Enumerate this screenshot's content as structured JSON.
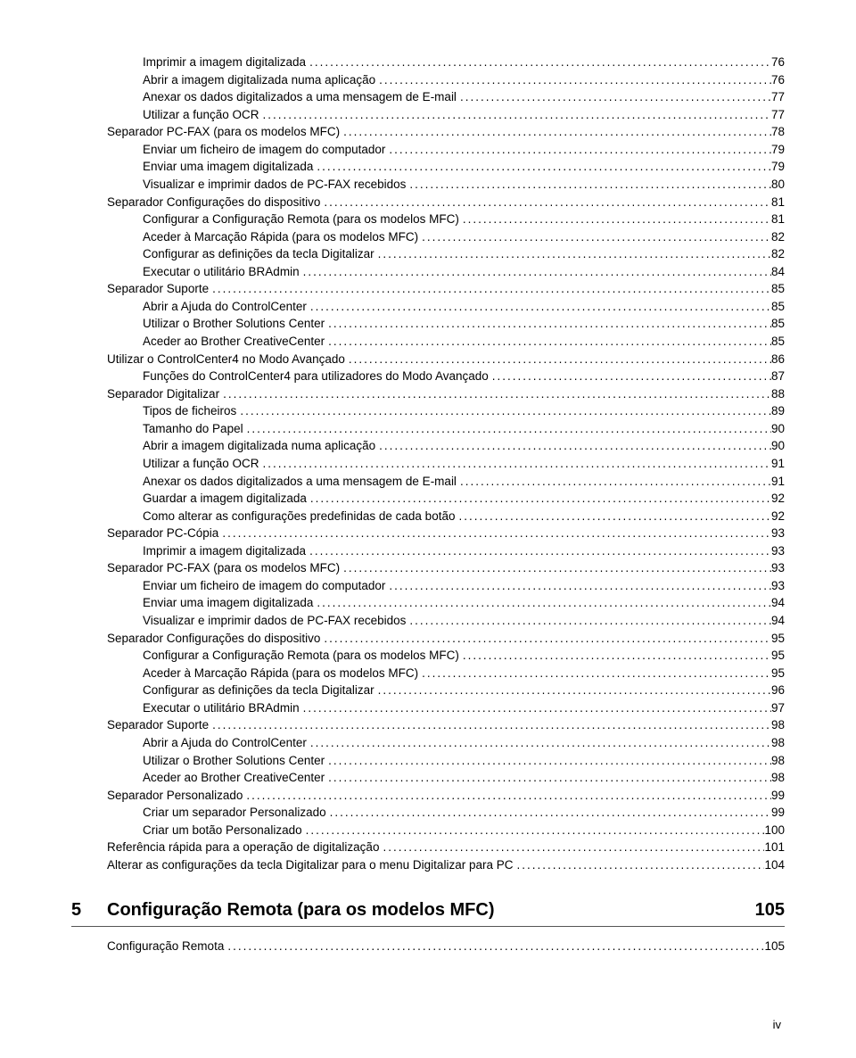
{
  "toc": [
    {
      "indent": 1,
      "title": "Imprimir a imagem digitalizada",
      "page": "76"
    },
    {
      "indent": 1,
      "title": "Abrir a imagem digitalizada numa aplicação",
      "page": "76"
    },
    {
      "indent": 1,
      "title": "Anexar os dados digitalizados a uma mensagem de E-mail",
      "page": "77"
    },
    {
      "indent": 1,
      "title": "Utilizar a função OCR",
      "page": "77"
    },
    {
      "indent": 0,
      "title": "Separador PC-FAX (para os modelos MFC)",
      "page": "78"
    },
    {
      "indent": 1,
      "title": "Enviar um ficheiro de imagem do computador",
      "page": "79"
    },
    {
      "indent": 1,
      "title": "Enviar uma imagem digitalizada",
      "page": "79"
    },
    {
      "indent": 1,
      "title": "Visualizar e imprimir dados de PC-FAX recebidos",
      "page": "80"
    },
    {
      "indent": 0,
      "title": "Separador Configurações do dispositivo",
      "page": "81"
    },
    {
      "indent": 1,
      "title": "Configurar a Configuração Remota (para os modelos MFC)",
      "page": "81"
    },
    {
      "indent": 1,
      "title": "Aceder à Marcação Rápida (para os modelos MFC)",
      "page": "82"
    },
    {
      "indent": 1,
      "title": "Configurar as definições da tecla Digitalizar",
      "page": "82"
    },
    {
      "indent": 1,
      "title": "Executar o utilitário BRAdmin",
      "page": "84"
    },
    {
      "indent": 0,
      "title": "Separador Suporte",
      "page": "85"
    },
    {
      "indent": 1,
      "title": "Abrir a Ajuda do ControlCenter",
      "page": "85"
    },
    {
      "indent": 1,
      "title": "Utilizar o Brother Solutions Center",
      "page": "85"
    },
    {
      "indent": 1,
      "title": "Aceder ao Brother CreativeCenter",
      "page": "85"
    },
    {
      "indent": 0,
      "title": "Utilizar o ControlCenter4 no Modo Avançado",
      "page": "86"
    },
    {
      "indent": 1,
      "title": "Funções do ControlCenter4 para utilizadores do Modo Avançado",
      "page": "87"
    },
    {
      "indent": 0,
      "title": "Separador Digitalizar",
      "page": "88"
    },
    {
      "indent": 1,
      "title": "Tipos de ficheiros",
      "page": "89"
    },
    {
      "indent": 1,
      "title": "Tamanho do Papel",
      "page": "90"
    },
    {
      "indent": 1,
      "title": "Abrir a imagem digitalizada numa aplicação",
      "page": "90"
    },
    {
      "indent": 1,
      "title": "Utilizar a função OCR",
      "page": "91"
    },
    {
      "indent": 1,
      "title": "Anexar os dados digitalizados a uma mensagem de E-mail",
      "page": "91"
    },
    {
      "indent": 1,
      "title": "Guardar a imagem digitalizada",
      "page": "92"
    },
    {
      "indent": 1,
      "title": "Como alterar as configurações predefinidas de cada botão",
      "page": "92"
    },
    {
      "indent": 0,
      "title": "Separador PC-Cópia",
      "page": "93"
    },
    {
      "indent": 1,
      "title": "Imprimir a imagem digitalizada",
      "page": "93"
    },
    {
      "indent": 0,
      "title": "Separador PC-FAX (para os modelos MFC)",
      "page": "93"
    },
    {
      "indent": 1,
      "title": "Enviar um ficheiro de imagem do computador",
      "page": "93"
    },
    {
      "indent": 1,
      "title": "Enviar uma imagem digitalizada",
      "page": "94"
    },
    {
      "indent": 1,
      "title": "Visualizar e imprimir dados de PC-FAX recebidos",
      "page": "94"
    },
    {
      "indent": 0,
      "title": "Separador Configurações do dispositivo",
      "page": "95"
    },
    {
      "indent": 1,
      "title": "Configurar a Configuração Remota (para os modelos MFC)",
      "page": "95"
    },
    {
      "indent": 1,
      "title": "Aceder à Marcação Rápida (para os modelos MFC)",
      "page": "95"
    },
    {
      "indent": 1,
      "title": "Configurar as definições da tecla Digitalizar",
      "page": "96"
    },
    {
      "indent": 1,
      "title": "Executar o utilitário BRAdmin",
      "page": "97"
    },
    {
      "indent": 0,
      "title": "Separador Suporte",
      "page": "98"
    },
    {
      "indent": 1,
      "title": "Abrir a Ajuda do ControlCenter",
      "page": "98"
    },
    {
      "indent": 1,
      "title": "Utilizar o Brother Solutions Center",
      "page": "98"
    },
    {
      "indent": 1,
      "title": "Aceder ao Brother CreativeCenter",
      "page": "98"
    },
    {
      "indent": 0,
      "title": "Separador Personalizado",
      "page": "99"
    },
    {
      "indent": 1,
      "title": "Criar um separador Personalizado",
      "page": "99"
    },
    {
      "indent": 1,
      "title": "Criar um botão Personalizado",
      "page": "100"
    },
    {
      "indent": 0,
      "title": "Referência rápida para a operação de digitalização",
      "page": "101"
    },
    {
      "indent": 0,
      "title": "Alterar as configurações da tecla Digitalizar para o menu Digitalizar para PC",
      "page": "104"
    }
  ],
  "section": {
    "num": "5",
    "heading": "Configuração Remota (para os modelos MFC)",
    "page": "105",
    "entries": [
      {
        "indent": 0,
        "title": "Configuração Remota",
        "page": "105"
      }
    ]
  },
  "footer": "iv"
}
